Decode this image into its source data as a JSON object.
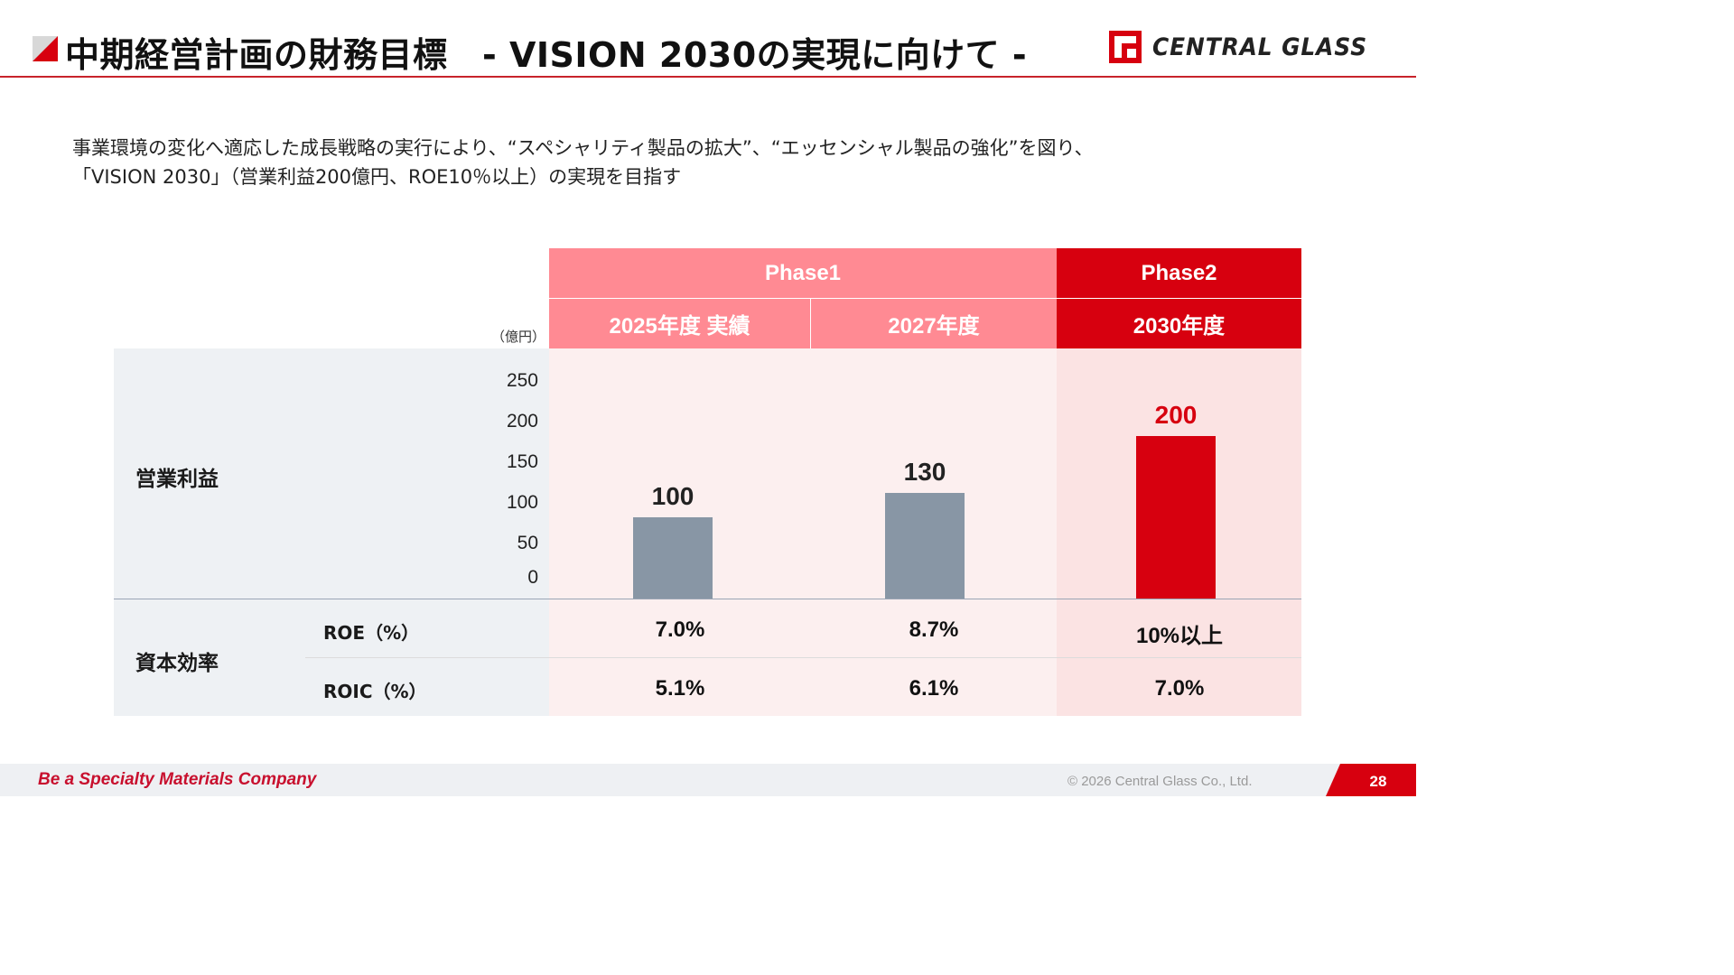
{
  "header": {
    "title": "中期経営計画の財務目標　- VISION 2030の実現に向けて -",
    "logo_text": "CENTRAL  GLASS"
  },
  "intro": {
    "line1": "事業環境の変化へ適応した成長戦略の実行により、“スペシャリティ製品の拡大”、“エッセンシャル製品の強化”を図り、",
    "line2": "「VISION 2030」（営業利益200億円、ROE10％以上）の実現を目指す"
  },
  "table": {
    "unit_label": "（億円）",
    "phase1_label": "Phase1",
    "phase2_label": "Phase2",
    "columns": [
      "2025年度 実績",
      "2027年度",
      "2030年度"
    ],
    "row_operating_profit": "営業利益",
    "row_capital_efficiency": "資本効率",
    "roe_label": "ROE（%）",
    "roic_label": "ROIC（%）",
    "roe_values": [
      "7.0%",
      "8.7%",
      "10%以上"
    ],
    "roic_values": [
      "5.1%",
      "6.1%",
      "7.0%"
    ]
  },
  "chart_data": {
    "type": "bar",
    "categories": [
      "2025年度 実績",
      "2027年度",
      "2030年度"
    ],
    "values": [
      100,
      130,
      200
    ],
    "value_labels": [
      "100",
      "130",
      "200"
    ],
    "y_ticks": [
      "250",
      "200",
      "150",
      "100",
      "50",
      "0"
    ],
    "ylim": [
      0,
      250
    ],
    "unit": "（億円）",
    "colors": [
      "#8896a5",
      "#8896a5",
      "#d7000f"
    ],
    "label_colors": [
      "#222222",
      "#222222",
      "#d7000f"
    ]
  },
  "footer": {
    "tagline": "Be a Specialty Materials Company",
    "copyright": "© 2026 Central Glass Co., Ltd.",
    "page_number": "28"
  },
  "colors": {
    "accent_red": "#d7000f",
    "phase1_pink": "#ff8a93",
    "light_pink": "#fcefef",
    "phase2_light": "#fbe3e3",
    "label_gray_bg": "#eef1f4",
    "bar_gray": "#8896a5"
  }
}
